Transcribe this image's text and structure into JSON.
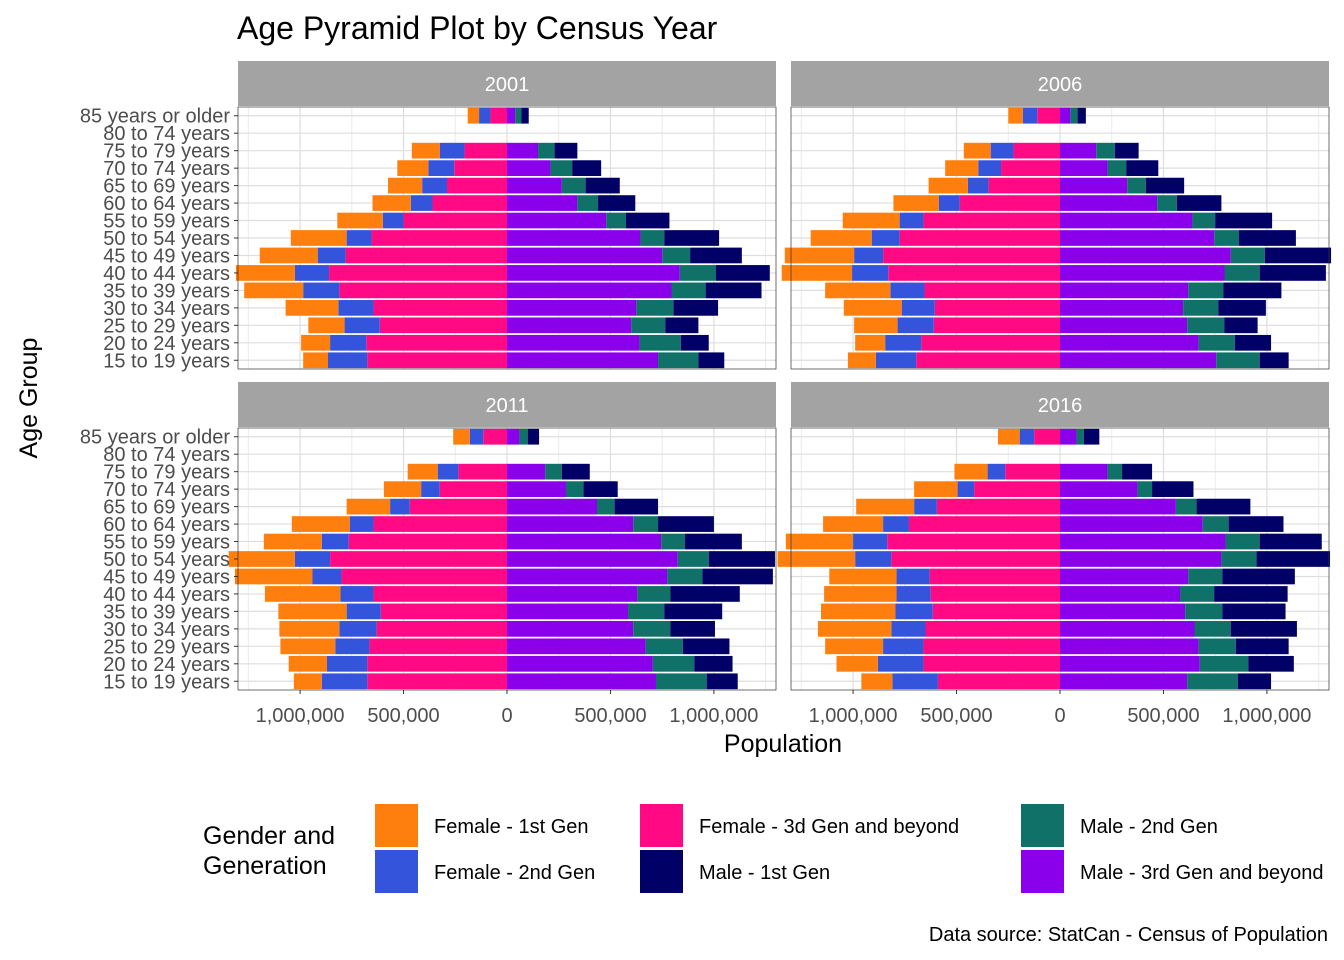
{
  "chart_data": {
    "type": "bar",
    "title": "Age Pyramid Plot by Census Year",
    "xlabel": "Population",
    "ylabel": "Age Group",
    "caption": "Data source: StatCan - Census of Population",
    "legend_title": "Gender and Generation",
    "legend_position": "bottom",
    "grid": true,
    "xlim": [
      -1300000,
      1300000
    ],
    "x_ticks": [
      -1000000,
      -500000,
      0,
      500000,
      1000000
    ],
    "x_tick_labels": [
      "1,000,000",
      "500,000",
      "0",
      "500,000",
      "1,000,000"
    ],
    "age_groups": [
      "15 to 19 years",
      "20 to 24 years",
      "25 to 29 years",
      "30 to 34 years",
      "35 to 39 years",
      "40 to 44 years",
      "45 to 49 years",
      "50 to 54 years",
      "55 to 59 years",
      "60 to 64 years",
      "65 to 69 years",
      "70 to 74 years",
      "75 to 79 years",
      "80 to 74 years",
      "85 years or older"
    ],
    "series": [
      {
        "name": "Female - 1st Gen",
        "color": "#FF7F0E"
      },
      {
        "name": "Female - 2nd Gen",
        "color": "#3455DB"
      },
      {
        "name": "Female - 3d Gen and beyond",
        "color": "#FF0A84"
      },
      {
        "name": "Male - 1st Gen",
        "color": "#000066"
      },
      {
        "name": "Male - 2nd Gen",
        "color": "#107169"
      },
      {
        "name": "Male - 3rd Gen and beyond",
        "color": "#8A00EB"
      }
    ],
    "female_order": [
      "Female - 3d Gen and beyond",
      "Female - 2nd Gen",
      "Female - 1st Gen"
    ],
    "male_order": [
      "Male - 3rd Gen and beyond",
      "Male - 2nd Gen",
      "Male - 1st Gen"
    ],
    "panels": [
      {
        "year": "2001",
        "female": {
          "third": [
            675000,
            680000,
            615000,
            645000,
            810000,
            860000,
            780000,
            655000,
            500000,
            360000,
            290000,
            255000,
            205000,
            0,
            80000
          ],
          "second": [
            190000,
            175000,
            170000,
            170000,
            175000,
            165000,
            135000,
            120000,
            100000,
            105000,
            120000,
            125000,
            120000,
            0,
            55000
          ],
          "first": [
            120000,
            140000,
            175000,
            255000,
            285000,
            285000,
            280000,
            270000,
            220000,
            185000,
            165000,
            150000,
            135000,
            0,
            55000
          ]
        },
        "male": {
          "third": [
            730000,
            640000,
            600000,
            625000,
            795000,
            835000,
            750000,
            645000,
            480000,
            340000,
            265000,
            210000,
            150000,
            0,
            40000
          ],
          "second": [
            195000,
            200000,
            165000,
            180000,
            165000,
            175000,
            135000,
            115000,
            95000,
            100000,
            115000,
            105000,
            80000,
            0,
            30000
          ],
          "first": [
            125000,
            135000,
            160000,
            215000,
            270000,
            260000,
            250000,
            265000,
            210000,
            180000,
            165000,
            140000,
            110000,
            0,
            35000
          ]
        }
      },
      {
        "year": "2006",
        "female": {
          "third": [
            695000,
            670000,
            610000,
            605000,
            655000,
            830000,
            855000,
            775000,
            660000,
            485000,
            345000,
            285000,
            225000,
            0,
            110000
          ],
          "second": [
            195000,
            175000,
            175000,
            160000,
            165000,
            175000,
            140000,
            135000,
            115000,
            100000,
            100000,
            110000,
            110000,
            0,
            70000
          ],
          "first": [
            135000,
            145000,
            210000,
            280000,
            315000,
            340000,
            335000,
            295000,
            275000,
            220000,
            190000,
            160000,
            130000,
            0,
            70000
          ]
        },
        "male": {
          "third": [
            755000,
            670000,
            615000,
            595000,
            620000,
            795000,
            825000,
            745000,
            640000,
            470000,
            325000,
            230000,
            175000,
            0,
            50000
          ],
          "second": [
            210000,
            175000,
            180000,
            170000,
            170000,
            170000,
            165000,
            120000,
            110000,
            95000,
            90000,
            90000,
            90000,
            0,
            35000
          ],
          "first": [
            140000,
            175000,
            160000,
            230000,
            280000,
            320000,
            320000,
            275000,
            275000,
            215000,
            185000,
            155000,
            115000,
            0,
            40000
          ]
        }
      },
      {
        "year": "2011",
        "female": {
          "third": [
            675000,
            675000,
            665000,
            630000,
            610000,
            645000,
            800000,
            855000,
            765000,
            645000,
            470000,
            325000,
            235000,
            0,
            115000
          ],
          "second": [
            220000,
            195000,
            165000,
            180000,
            165000,
            160000,
            140000,
            170000,
            130000,
            115000,
            95000,
            90000,
            100000,
            0,
            65000
          ],
          "first": [
            135000,
            185000,
            265000,
            290000,
            330000,
            365000,
            375000,
            320000,
            280000,
            280000,
            210000,
            180000,
            145000,
            0,
            80000
          ]
        },
        "male": {
          "third": [
            720000,
            705000,
            670000,
            610000,
            585000,
            630000,
            775000,
            825000,
            745000,
            610000,
            435000,
            285000,
            185000,
            0,
            60000
          ],
          "second": [
            245000,
            200000,
            180000,
            180000,
            175000,
            160000,
            170000,
            150000,
            115000,
            120000,
            85000,
            85000,
            80000,
            0,
            40000
          ],
          "first": [
            150000,
            185000,
            225000,
            215000,
            280000,
            335000,
            340000,
            320000,
            275000,
            270000,
            210000,
            165000,
            135000,
            0,
            55000
          ]
        }
      },
      {
        "year": "2016",
        "female": {
          "third": [
            590000,
            660000,
            660000,
            650000,
            615000,
            625000,
            630000,
            815000,
            835000,
            730000,
            595000,
            415000,
            265000,
            0,
            125000
          ],
          "second": [
            220000,
            220000,
            195000,
            165000,
            180000,
            165000,
            160000,
            175000,
            165000,
            125000,
            110000,
            80000,
            85000,
            0,
            70000
          ],
          "first": [
            150000,
            200000,
            280000,
            355000,
            360000,
            350000,
            325000,
            375000,
            325000,
            290000,
            280000,
            210000,
            160000,
            0,
            105000
          ]
        },
        "male": {
          "third": [
            615000,
            675000,
            670000,
            650000,
            605000,
            580000,
            620000,
            780000,
            800000,
            690000,
            560000,
            375000,
            230000,
            0,
            80000
          ],
          "second": [
            245000,
            235000,
            180000,
            175000,
            180000,
            165000,
            165000,
            170000,
            165000,
            125000,
            100000,
            70000,
            70000,
            0,
            35000
          ],
          "first": [
            160000,
            220000,
            255000,
            320000,
            305000,
            355000,
            350000,
            355000,
            300000,
            265000,
            260000,
            200000,
            145000,
            0,
            75000
          ]
        }
      }
    ]
  }
}
